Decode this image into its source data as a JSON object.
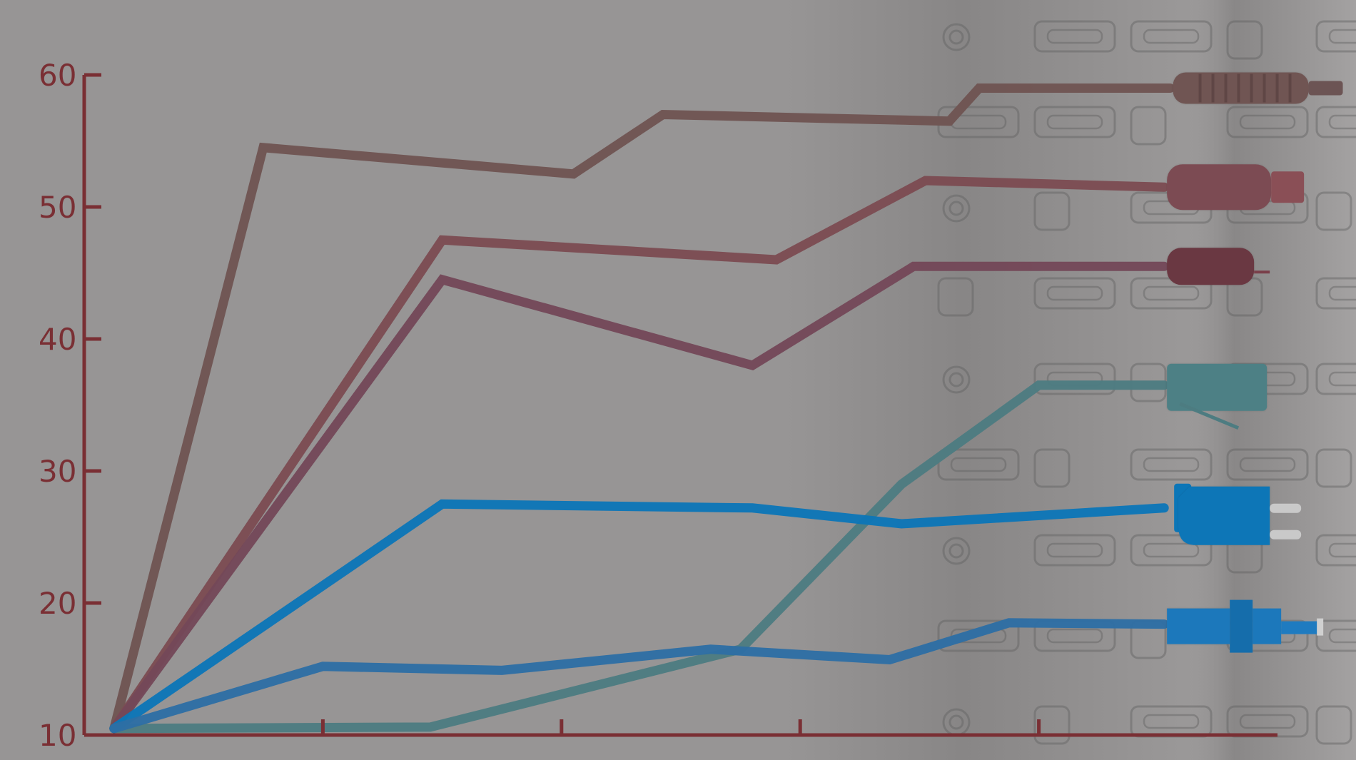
{
  "chart_data": {
    "type": "line",
    "title": "",
    "xlabel": "",
    "ylabel": "",
    "ylim": [
      10,
      60
    ],
    "yticks": [
      "10",
      "20",
      "30",
      "40",
      "50",
      "60"
    ],
    "xticks": [
      "",
      "",
      "",
      ""
    ],
    "grid": false,
    "legend": "none",
    "colors": {
      "axis": "#7a2f34",
      "background": "#979595"
    },
    "series": [
      {
        "color": "#6f5452",
        "values": [
          [
            0.5,
            10.5
          ],
          [
            3,
            54.5
          ],
          [
            8.2,
            52.5
          ],
          [
            9.7,
            57
          ],
          [
            14.5,
            56.5
          ],
          [
            15,
            59
          ],
          [
            18.2,
            59
          ]
        ]
      },
      {
        "color": "#7c4c52",
        "values": [
          [
            0.5,
            10.5
          ],
          [
            6,
            47.5
          ],
          [
            11.6,
            46
          ],
          [
            14.1,
            52
          ],
          [
            18.1,
            51.5
          ]
        ]
      },
      {
        "color": "#744858",
        "values": [
          [
            0.5,
            10.5
          ],
          [
            6,
            44.5
          ],
          [
            11.2,
            38
          ],
          [
            13.9,
            45.5
          ],
          [
            18.1,
            45.5
          ]
        ]
      },
      {
        "color": "#4d7c81",
        "values": [
          [
            0.5,
            10.5
          ],
          [
            5.8,
            10.6
          ],
          [
            11,
            16.5
          ],
          [
            13.7,
            29
          ],
          [
            16,
            36.5
          ],
          [
            18.1,
            36.5
          ]
        ]
      },
      {
        "color": "#0c76b7",
        "values": [
          [
            0.5,
            10.5
          ],
          [
            6,
            27.5
          ],
          [
            11.2,
            27.2
          ],
          [
            13.7,
            26
          ],
          [
            18.1,
            27.2
          ]
        ]
      },
      {
        "color": "#2e6ea4",
        "values": [
          [
            0.5,
            10.5
          ],
          [
            4,
            15.2
          ],
          [
            7,
            14.9
          ],
          [
            10.5,
            16.5
          ],
          [
            13.5,
            15.7
          ],
          [
            15.5,
            18.5
          ],
          [
            18.1,
            18.4
          ]
        ]
      }
    ]
  }
}
